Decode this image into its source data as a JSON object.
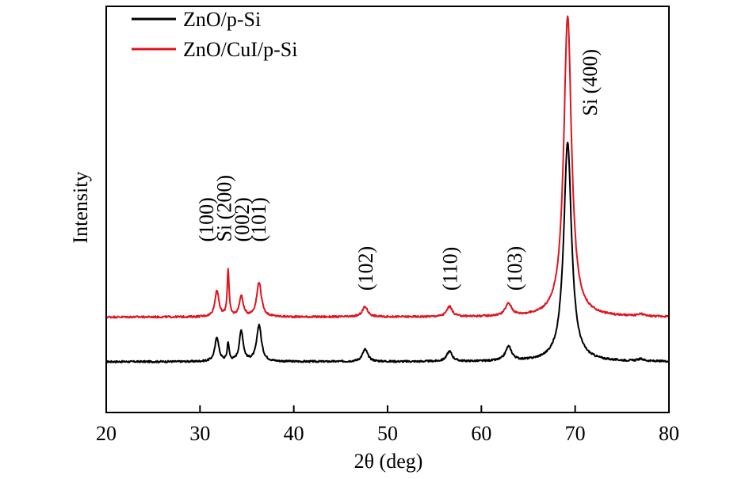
{
  "chart_data": {
    "type": "line",
    "title": "",
    "xlabel": "2θ (deg)",
    "ylabel": "Intensity",
    "xlim": [
      20,
      80
    ],
    "ylim": [
      0,
      100
    ],
    "xticks": [
      20,
      30,
      40,
      50,
      60,
      70,
      80
    ],
    "yticks_shown": false,
    "grid": false,
    "legend_position": "top-left",
    "colors": {
      "axis": "#000000"
    },
    "series": [
      {
        "name": "ZnO/p-Si",
        "color": "#000000",
        "baseline": 12.5,
        "peaks": [
          {
            "x": 31.8,
            "height": 6.0,
            "width": 0.25
          },
          {
            "x": 33.0,
            "height": 4.5,
            "width": 0.12
          },
          {
            "x": 34.4,
            "height": 7.5,
            "width": 0.25
          },
          {
            "x": 36.3,
            "height": 9.0,
            "width": 0.3
          },
          {
            "x": 47.6,
            "height": 3.0,
            "width": 0.35
          },
          {
            "x": 56.6,
            "height": 2.5,
            "width": 0.35
          },
          {
            "x": 62.9,
            "height": 3.5,
            "width": 0.4
          },
          {
            "x": 69.2,
            "height": 54.0,
            "width": 0.5
          },
          {
            "x": 77.0,
            "height": 0.5,
            "width": 0.4
          }
        ]
      },
      {
        "name": "ZnO/CuI/p-Si",
        "color": "#e0141e",
        "baseline": 23.5,
        "peaks": [
          {
            "x": 31.8,
            "height": 6.5,
            "width": 0.25
          },
          {
            "x": 33.0,
            "height": 11.5,
            "width": 0.12
          },
          {
            "x": 34.4,
            "height": 5.0,
            "width": 0.25
          },
          {
            "x": 36.3,
            "height": 8.5,
            "width": 0.3
          },
          {
            "x": 47.6,
            "height": 2.5,
            "width": 0.35
          },
          {
            "x": 56.6,
            "height": 2.5,
            "width": 0.35
          },
          {
            "x": 62.9,
            "height": 3.0,
            "width": 0.4
          },
          {
            "x": 69.2,
            "height": 74.0,
            "width": 0.5
          },
          {
            "x": 77.0,
            "height": 0.5,
            "width": 0.4
          }
        ]
      }
    ],
    "annotations": [
      {
        "text": "(100)",
        "x": 31.4,
        "y": 42
      },
      {
        "text": "Si (200)",
        "x": 33.3,
        "y": 42
      },
      {
        "text": "(002)",
        "x": 35.2,
        "y": 42
      },
      {
        "text": "(101)",
        "x": 37.0,
        "y": 42
      },
      {
        "text": "(102)",
        "x": 48.4,
        "y": 30
      },
      {
        "text": "(110)",
        "x": 57.4,
        "y": 30
      },
      {
        "text": "(103)",
        "x": 64.3,
        "y": 30
      },
      {
        "text": "Si (400)",
        "x": 72.3,
        "y": 73
      }
    ]
  }
}
